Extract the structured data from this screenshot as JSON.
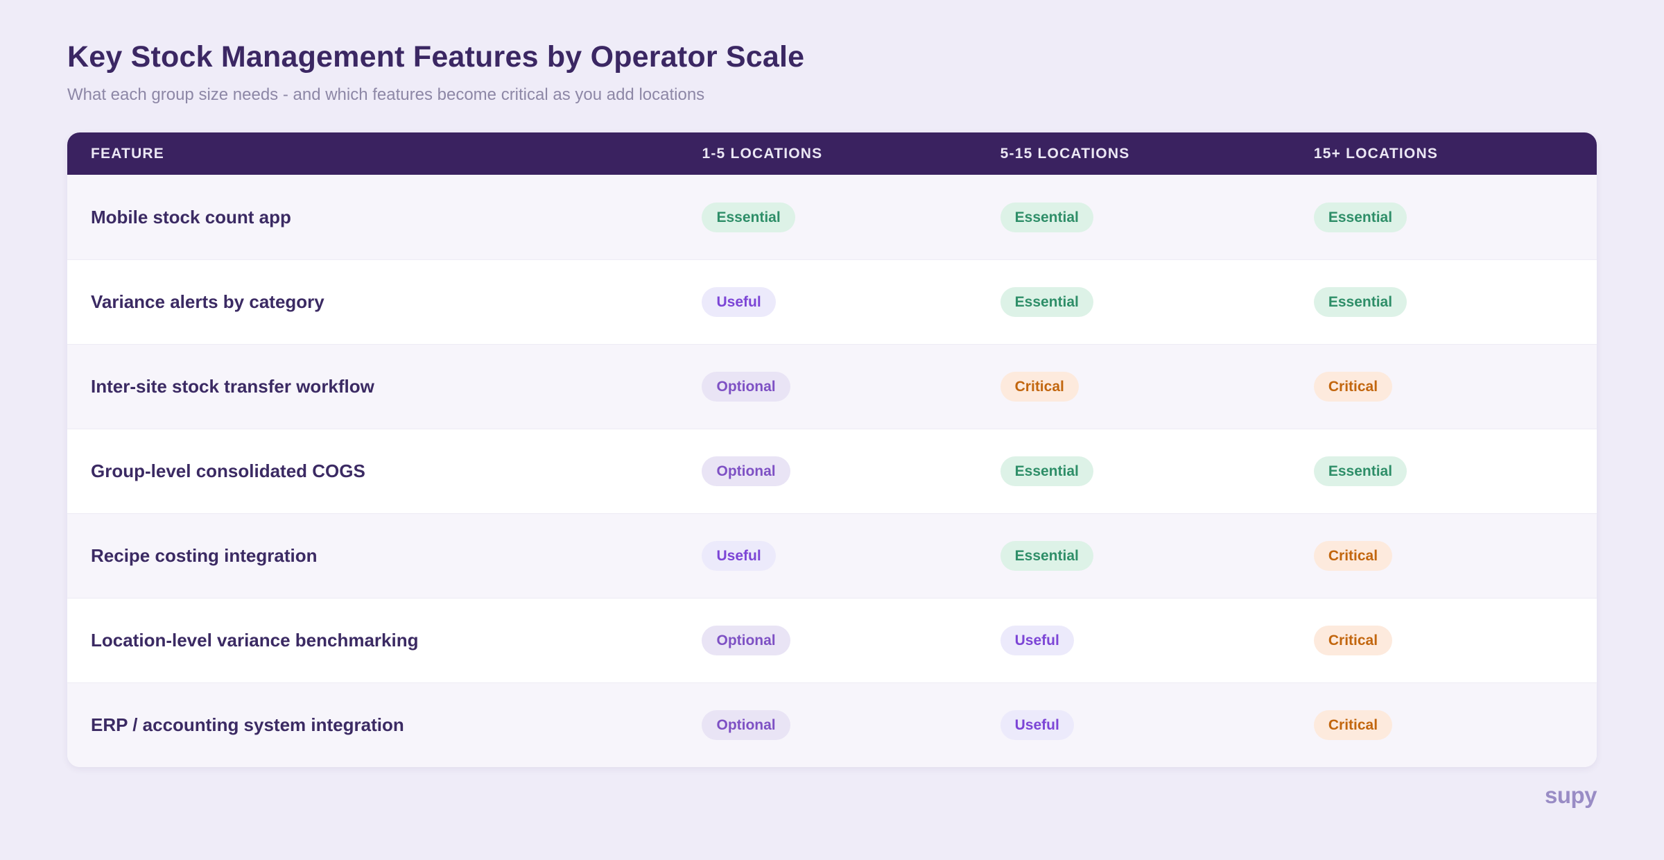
{
  "page": {
    "title": "Key Stock Management Features by Operator Scale",
    "subtitle": "What each group size needs - and which features become critical as you add locations",
    "footer_logo": "supy"
  },
  "table": {
    "headers": [
      "FEATURE",
      "1-5 LOCATIONS",
      "5-15 LOCATIONS",
      "15+ LOCATIONS"
    ],
    "rows": [
      {
        "feature": "Mobile stock count app",
        "c1": {
          "label": "Essential",
          "level": "essential"
        },
        "c2": {
          "label": "Essential",
          "level": "essential"
        },
        "c3": {
          "label": "Essential",
          "level": "essential"
        }
      },
      {
        "feature": "Variance alerts by category",
        "c1": {
          "label": "Useful",
          "level": "useful"
        },
        "c2": {
          "label": "Essential",
          "level": "essential"
        },
        "c3": {
          "label": "Essential",
          "level": "essential"
        }
      },
      {
        "feature": "Inter-site stock transfer workflow",
        "c1": {
          "label": "Optional",
          "level": "optional"
        },
        "c2": {
          "label": "Critical",
          "level": "critical"
        },
        "c3": {
          "label": "Critical",
          "level": "critical"
        }
      },
      {
        "feature": "Group-level consolidated COGS",
        "c1": {
          "label": "Optional",
          "level": "optional"
        },
        "c2": {
          "label": "Essential",
          "level": "essential"
        },
        "c3": {
          "label": "Essential",
          "level": "essential"
        }
      },
      {
        "feature": "Recipe costing integration",
        "c1": {
          "label": "Useful",
          "level": "useful"
        },
        "c2": {
          "label": "Essential",
          "level": "essential"
        },
        "c3": {
          "label": "Critical",
          "level": "critical"
        }
      },
      {
        "feature": "Location-level variance benchmarking",
        "c1": {
          "label": "Optional",
          "level": "optional"
        },
        "c2": {
          "label": "Useful",
          "level": "useful"
        },
        "c3": {
          "label": "Critical",
          "level": "critical"
        }
      },
      {
        "feature": "ERP / accounting system integration",
        "c1": {
          "label": "Optional",
          "level": "optional"
        },
        "c2": {
          "label": "Useful",
          "level": "useful"
        },
        "c3": {
          "label": "Critical",
          "level": "critical"
        }
      }
    ]
  },
  "levels": {
    "essential": {
      "text_color": "#2e8e68",
      "bg_color": "#ddf2e7"
    },
    "useful": {
      "text_color": "#7c45d6",
      "bg_color": "#eceafb"
    },
    "optional": {
      "text_color": "#7e51c4",
      "bg_color": "#e9e4f5"
    },
    "critical": {
      "text_color": "#c2660e",
      "bg_color": "#fdeadd"
    }
  },
  "colors": {
    "page_bg": "#efecf8",
    "card_bg": "#ffffff",
    "header_bg": "#3a2260",
    "header_text": "#ebe7f4",
    "title_color": "#3b2763",
    "subtitle_color": "#8d87a6",
    "row_alt_bg": "#f7f5fb",
    "logo_color": "#998cc5"
  },
  "chart_data": {
    "type": "table",
    "title": "Key Stock Management Features by Operator Scale",
    "subtitle": "What each group size needs - and which features become critical as you add locations",
    "columns": [
      "Feature",
      "1-5 Locations",
      "5-15 Locations",
      "15+ Locations"
    ],
    "rows": [
      [
        "Mobile stock count app",
        "Essential",
        "Essential",
        "Essential"
      ],
      [
        "Variance alerts by category",
        "Useful",
        "Essential",
        "Essential"
      ],
      [
        "Inter-site stock transfer workflow",
        "Optional",
        "Critical",
        "Critical"
      ],
      [
        "Group-level consolidated COGS",
        "Optional",
        "Essential",
        "Essential"
      ],
      [
        "Recipe costing integration",
        "Useful",
        "Essential",
        "Critical"
      ],
      [
        "Location-level variance benchmarking",
        "Optional",
        "Useful",
        "Critical"
      ],
      [
        "ERP / accounting system integration",
        "Optional",
        "Useful",
        "Critical"
      ]
    ]
  }
}
